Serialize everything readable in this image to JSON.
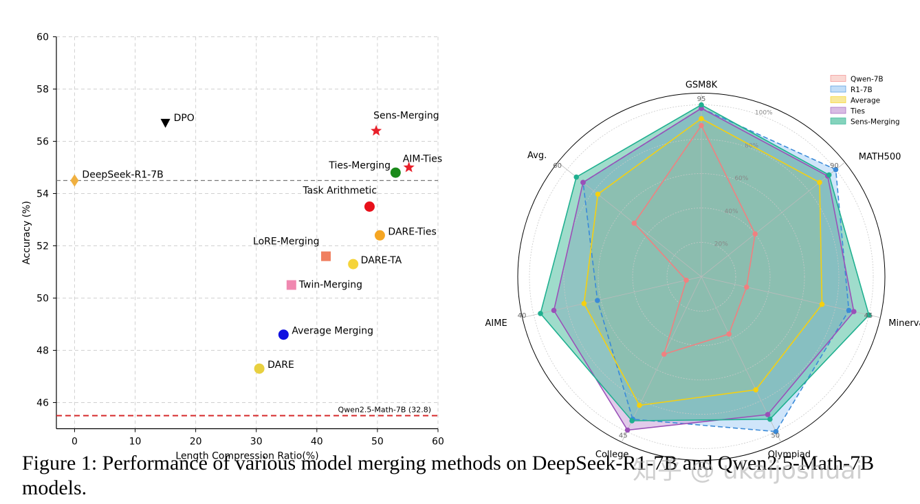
{
  "chart_data": [
    {
      "type": "scatter",
      "xlabel": "Length Compression Ratio(%)",
      "ylabel": "Accuracy (%)",
      "xlim": [
        -3,
        60
      ],
      "ylim": [
        45,
        60
      ],
      "xticks": [
        0,
        10,
        20,
        30,
        40,
        50,
        60
      ],
      "yticks": [
        46,
        48,
        50,
        52,
        54,
        56,
        58,
        60
      ],
      "grid": true,
      "reference_lines": [
        {
          "name": "DeepSeek-R1-7B",
          "y": 54.5,
          "color": "#777777",
          "style": "dashed"
        },
        {
          "name": "Qwen2.5-Math-7B",
          "y": 45.5,
          "color": "#d62728",
          "style": "dashed",
          "label": "Qwen2.5-Math-7B (32.8)"
        }
      ],
      "points": [
        {
          "name": "DeepSeek-R1-7B",
          "x": 0,
          "y": 54.5,
          "marker": "diamond",
          "color": "#f0b040"
        },
        {
          "name": "DPO",
          "x": 15,
          "y": 56.7,
          "marker": "triangle-down",
          "color": "#000000"
        },
        {
          "name": "Sens-Merging",
          "x": 49.8,
          "y": 56.4,
          "marker": "star",
          "color": "#e8202a"
        },
        {
          "name": "AIM-Ties",
          "x": 55.2,
          "y": 55.0,
          "marker": "star",
          "color": "#e8202a"
        },
        {
          "name": "Ties-Merging",
          "x": 53.0,
          "y": 54.8,
          "marker": "circle",
          "color": "#1a8a1a"
        },
        {
          "name": "Task Arithmetic",
          "x": 48.7,
          "y": 53.5,
          "marker": "circle",
          "color": "#e8101a"
        },
        {
          "name": "DARE-Ties",
          "x": 50.4,
          "y": 52.4,
          "marker": "circle",
          "color": "#f5a623"
        },
        {
          "name": "LoRE-Merging",
          "x": 41.5,
          "y": 51.6,
          "marker": "square",
          "color": "#f08060"
        },
        {
          "name": "DARE-TA",
          "x": 46.0,
          "y": 51.3,
          "marker": "circle",
          "color": "#f5d43a"
        },
        {
          "name": "Twin-Merging",
          "x": 35.8,
          "y": 50.5,
          "marker": "square",
          "color": "#f088b0"
        },
        {
          "name": "Average Merging",
          "x": 34.5,
          "y": 48.6,
          "marker": "circle",
          "color": "#1010e0"
        },
        {
          "name": "DARE",
          "x": 30.5,
          "y": 47.3,
          "marker": "circle",
          "color": "#e8d040"
        }
      ]
    },
    {
      "type": "radar",
      "axes": [
        "GSM8K",
        "MATH500",
        "Minerva",
        "Olympiad",
        "College",
        "AIME",
        "Avg."
      ],
      "axis_ticks": [
        "95",
        "90",
        "45",
        "50",
        "45",
        "40",
        "60"
      ],
      "radial_ticks": [
        "20%",
        "40%",
        "60%",
        "80%",
        "100%"
      ],
      "radial_values": [
        0.2,
        0.4,
        0.6,
        0.8,
        1.0
      ],
      "series": [
        {
          "name": "Qwen-7B",
          "color": "#f08080",
          "fill": "#f8c8c0",
          "dashed": false,
          "values": [
            0.88,
            0.4,
            0.27,
            0.37,
            0.5,
            0.09,
            0.5
          ]
        },
        {
          "name": "R1-7B",
          "color": "#3a8ad8",
          "fill": "#a8d0f5",
          "dashed": true,
          "values": [
            0.98,
            1.0,
            0.88,
            1.0,
            0.92,
            0.62,
            0.88
          ]
        },
        {
          "name": "Average",
          "color": "#f5d010",
          "fill": "#f5e070",
          "dashed": false,
          "values": [
            0.92,
            0.88,
            0.72,
            0.73,
            0.83,
            0.7,
            0.77
          ]
        },
        {
          "name": "Ties",
          "color": "#9a50b8",
          "fill": "#c8a0d8",
          "dashed": false,
          "values": [
            0.98,
            0.94,
            0.91,
            0.89,
            0.99,
            0.88,
            0.88
          ]
        },
        {
          "name": "Sens-Merging",
          "color": "#20b090",
          "fill": "#50c0a0",
          "dashed": false,
          "values": [
            1.0,
            0.95,
            1.0,
            0.92,
            0.93,
            0.96,
            0.93
          ]
        }
      ],
      "legend_position": "top-right"
    }
  ],
  "caption": "Figure 1: Performance of various model merging methods on DeepSeek-R1-7B and Qwen2.5-Math-7B models.",
  "watermark": "知乎 @ ukaijoshuai"
}
